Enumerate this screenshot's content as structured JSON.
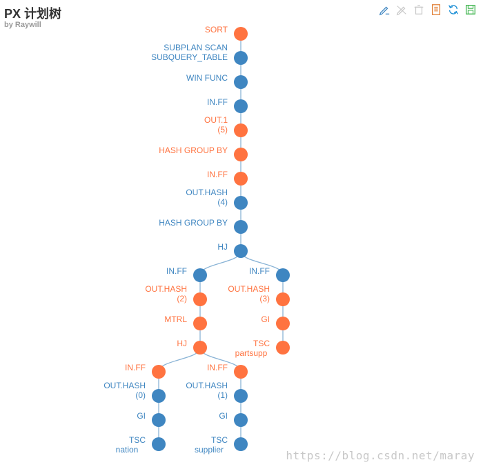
{
  "header": {
    "title": "PX 计划树",
    "subtitle": "by Raywill"
  },
  "toolbar": {
    "icons": [
      "mark-icon",
      "mark-undo-icon",
      "mark-clear-icon",
      "data-view-icon",
      "restore-icon",
      "save-image-icon"
    ]
  },
  "colors": {
    "blue": "#3f86c1",
    "orange": "#ff7340",
    "edge": "#8ab4d6"
  },
  "tree": {
    "nodes": [
      {
        "id": "n0",
        "lines": [
          "SORT"
        ],
        "color": "orange"
      },
      {
        "id": "n1",
        "lines": [
          "SUBPLAN SCAN",
          "SUBQUERY_TABLE"
        ],
        "color": "blue"
      },
      {
        "id": "n2",
        "lines": [
          "WIN FUNC"
        ],
        "color": "blue"
      },
      {
        "id": "n3",
        "lines": [
          "IN.FF"
        ],
        "color": "blue"
      },
      {
        "id": "n4",
        "lines": [
          "OUT.1",
          "(5)"
        ],
        "color": "orange"
      },
      {
        "id": "n5",
        "lines": [
          "HASH GROUP BY"
        ],
        "color": "orange"
      },
      {
        "id": "n6",
        "lines": [
          "IN.FF"
        ],
        "color": "orange"
      },
      {
        "id": "n7",
        "lines": [
          "OUT.HASH",
          "(4)"
        ],
        "color": "blue"
      },
      {
        "id": "n8",
        "lines": [
          "HASH GROUP BY"
        ],
        "color": "blue"
      },
      {
        "id": "n9",
        "lines": [
          "HJ"
        ],
        "color": "blue"
      },
      {
        "id": "n10",
        "lines": [
          "IN.FF"
        ],
        "color": "blue"
      },
      {
        "id": "n11",
        "lines": [
          "IN.FF"
        ],
        "color": "blue"
      },
      {
        "id": "n12",
        "lines": [
          "OUT.HASH",
          "(2)"
        ],
        "color": "orange"
      },
      {
        "id": "n13",
        "lines": [
          "MTRL"
        ],
        "color": "orange"
      },
      {
        "id": "n14",
        "lines": [
          "HJ"
        ],
        "color": "orange"
      },
      {
        "id": "n15",
        "lines": [
          "OUT.HASH",
          "(3)"
        ],
        "color": "orange"
      },
      {
        "id": "n16",
        "lines": [
          "GI"
        ],
        "color": "orange"
      },
      {
        "id": "n17",
        "lines": [
          "TSC"
        ],
        "sub": "partsupp",
        "color": "orange"
      },
      {
        "id": "n18",
        "lines": [
          "IN.FF"
        ],
        "color": "orange"
      },
      {
        "id": "n19",
        "lines": [
          "IN.FF"
        ],
        "color": "orange"
      },
      {
        "id": "n20",
        "lines": [
          "OUT.HASH",
          "(0)"
        ],
        "color": "blue"
      },
      {
        "id": "n21",
        "lines": [
          "GI"
        ],
        "color": "blue"
      },
      {
        "id": "n22",
        "lines": [
          "TSC"
        ],
        "sub": "nation",
        "color": "blue"
      },
      {
        "id": "n23",
        "lines": [
          "OUT.HASH",
          "(1)"
        ],
        "color": "blue"
      },
      {
        "id": "n24",
        "lines": [
          "GI"
        ],
        "color": "blue"
      },
      {
        "id": "n25",
        "lines": [
          "TSC"
        ],
        "sub": "supplier",
        "color": "blue"
      }
    ],
    "edges": [
      [
        "n0",
        "n1"
      ],
      [
        "n1",
        "n2"
      ],
      [
        "n2",
        "n3"
      ],
      [
        "n3",
        "n4"
      ],
      [
        "n4",
        "n5"
      ],
      [
        "n5",
        "n6"
      ],
      [
        "n6",
        "n7"
      ],
      [
        "n7",
        "n8"
      ],
      [
        "n8",
        "n9"
      ],
      [
        "n9",
        "n10"
      ],
      [
        "n9",
        "n11"
      ],
      [
        "n10",
        "n12"
      ],
      [
        "n12",
        "n13"
      ],
      [
        "n13",
        "n14"
      ],
      [
        "n11",
        "n15"
      ],
      [
        "n15",
        "n16"
      ],
      [
        "n16",
        "n17"
      ],
      [
        "n14",
        "n18"
      ],
      [
        "n14",
        "n19"
      ],
      [
        "n18",
        "n20"
      ],
      [
        "n20",
        "n21"
      ],
      [
        "n21",
        "n22"
      ],
      [
        "n19",
        "n23"
      ],
      [
        "n23",
        "n24"
      ],
      [
        "n24",
        "n25"
      ]
    ]
  },
  "watermark": "https://blog.csdn.net/maray"
}
